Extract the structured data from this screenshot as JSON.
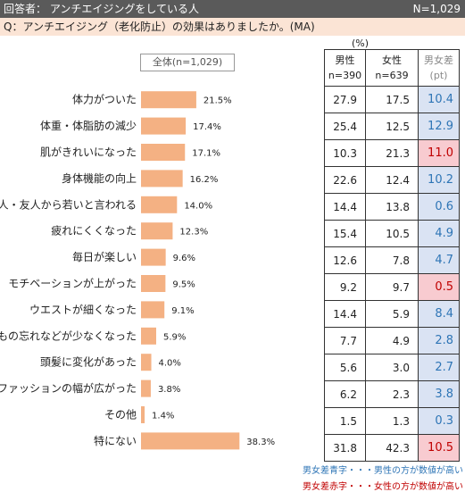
{
  "header": {
    "respondents": "回答者： アンチエイジングをしている人",
    "n_total": "N=1,029"
  },
  "question": "Q：アンチエイジング（老化防止）の効果はありましたか。(MA)",
  "unit_label": "(%)",
  "chart_data": {
    "type": "bar",
    "title": "全体(n=1,029)",
    "categories": [
      "体力がついた",
      "体重・体脂肪の減少",
      "肌がきれいになった",
      "身体機能の向上",
      "知人・友人から若いと言われる",
      "疲れにくくなった",
      "毎日が楽しい",
      "モチベーションが上がった",
      "ウエストが細くなった",
      "もの忘れなどが少なくなった",
      "頭髪に変化があった",
      "ファッションの幅が広がった",
      "その他",
      "特にない"
    ],
    "values": [
      21.5,
      17.4,
      17.1,
      16.2,
      14.0,
      12.3,
      9.6,
      9.5,
      9.1,
      5.9,
      4.0,
      3.8,
      1.4,
      38.3
    ],
    "value_labels": [
      "21.5%",
      "17.4%",
      "17.1%",
      "16.2%",
      "14.0%",
      "12.3%",
      "9.6%",
      "9.5%",
      "9.1%",
      "5.9%",
      "4.0%",
      "3.8%",
      "1.4%",
      "38.3%"
    ],
    "bar_color": "#f4b183"
  },
  "table": {
    "headers": [
      {
        "line1": "男性",
        "line2": "n=390"
      },
      {
        "line1": "女性",
        "line2": "n=639"
      },
      {
        "line1": "男女差",
        "line2": "(pt)"
      }
    ],
    "rows": [
      {
        "male": "27.9",
        "female": "17.5",
        "diff": "10.4",
        "dir": "blue"
      },
      {
        "male": "25.4",
        "female": "12.5",
        "diff": "12.9",
        "dir": "blue"
      },
      {
        "male": "10.3",
        "female": "21.3",
        "diff": "11.0",
        "dir": "red"
      },
      {
        "male": "22.6",
        "female": "12.4",
        "diff": "10.2",
        "dir": "blue"
      },
      {
        "male": "14.4",
        "female": "13.8",
        "diff": "0.6",
        "dir": "blue"
      },
      {
        "male": "15.4",
        "female": "10.5",
        "diff": "4.9",
        "dir": "blue"
      },
      {
        "male": "12.6",
        "female": "7.8",
        "diff": "4.7",
        "dir": "blue"
      },
      {
        "male": "9.2",
        "female": "9.7",
        "diff": "0.5",
        "dir": "red"
      },
      {
        "male": "14.4",
        "female": "5.9",
        "diff": "8.4",
        "dir": "blue"
      },
      {
        "male": "7.7",
        "female": "4.9",
        "diff": "2.8",
        "dir": "blue"
      },
      {
        "male": "5.6",
        "female": "3.0",
        "diff": "2.7",
        "dir": "blue"
      },
      {
        "male": "6.2",
        "female": "2.3",
        "diff": "3.8",
        "dir": "blue"
      },
      {
        "male": "1.5",
        "female": "1.3",
        "diff": "0.3",
        "dir": "blue"
      },
      {
        "male": "31.8",
        "female": "42.3",
        "diff": "10.5",
        "dir": "red"
      }
    ]
  },
  "notes": {
    "blue": "男女差青字・・・男性の方が数値が高い",
    "red": "男女差赤字・・・女性の方が数値が高い"
  },
  "colors": {
    "header_bg": "#5a5a5a",
    "question_bg": "#fbe4d5",
    "bar": "#f4b183",
    "blue_text": "#2e75b6",
    "blue_bg": "#dae3f3",
    "red_text": "#c00000",
    "red_bg": "#f8cbd0"
  }
}
